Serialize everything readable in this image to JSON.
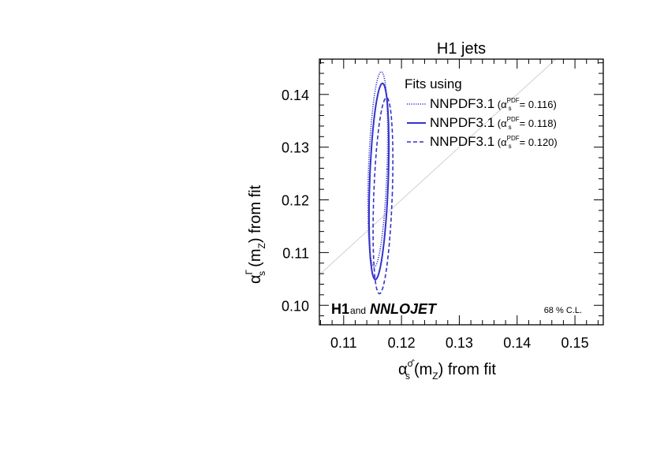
{
  "chart_data": {
    "type": "contour",
    "title": "H1 jets",
    "xlabel": {
      "main": "α",
      "sup": "σ̂",
      "sub": "s",
      "rest": "(m",
      "sub2": "Z",
      "rest2": ") from fit"
    },
    "ylabel": {
      "main": "α",
      "sup": "Γ",
      "sub": "s",
      "rest": "(m",
      "sub2": "Z",
      "rest2": ") from fit"
    },
    "xlim": [
      0.1058,
      0.1549
    ],
    "ylim": [
      0.0963,
      0.1467
    ],
    "xticks": [
      "0.11",
      "0.12",
      "0.13",
      "0.14",
      "0.15"
    ],
    "xtick_values": [
      0.11,
      0.12,
      0.13,
      0.14,
      0.15
    ],
    "yticks": [
      "0.10",
      "0.11",
      "0.12",
      "0.13",
      "0.14"
    ],
    "ytick_values": [
      0.1,
      0.11,
      0.12,
      0.13,
      0.14
    ],
    "diagonal": "y = x",
    "legend": {
      "header": "Fits using",
      "position": "top-right"
    },
    "series": [
      {
        "name": "NNPDF3.1",
        "pdf_label": "PDF",
        "pdf_value": "0.116",
        "style": "dotted",
        "center": [
          0.1159,
          0.1258
        ],
        "semi_x": 0.0016,
        "semi_y": 0.0185,
        "shear": 0.033
      },
      {
        "name": "NNPDF3.1",
        "pdf_label": "PDF",
        "pdf_value": "0.118",
        "style": "solid",
        "center": [
          0.1161,
          0.1235
        ],
        "semi_x": 0.0016,
        "semi_y": 0.0186,
        "shear": 0.033
      },
      {
        "name": "NNPDF3.1",
        "pdf_label": "PDF",
        "pdf_value": "0.120",
        "style": "dashed",
        "center": [
          0.1168,
          0.1208
        ],
        "semi_x": 0.0016,
        "semi_y": 0.0186,
        "shear": 0.033
      }
    ],
    "color": "#3333cc",
    "annotations": {
      "h1": "H1",
      "and": "and",
      "nnlojet": "NNLOJET",
      "cl": "68 % C.L."
    }
  }
}
